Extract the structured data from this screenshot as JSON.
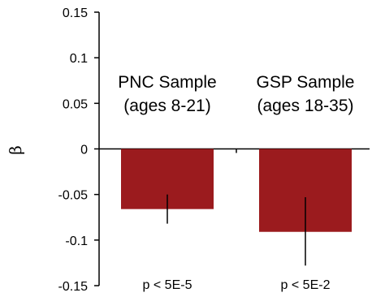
{
  "chart_data": {
    "type": "bar",
    "categories": [
      [
        "PNC Sample",
        "(ages 8-21)"
      ],
      [
        "GSP Sample",
        "(ages 18-35)"
      ]
    ],
    "values": [
      -0.066,
      -0.091
    ],
    "error_low": [
      -0.082,
      -0.128
    ],
    "error_high": [
      -0.05,
      -0.053
    ],
    "annotations": [
      "p < 5E-5",
      "p < 5E-2"
    ],
    "ylabel": "β",
    "xlabel": "",
    "ylim": [
      -0.15,
      0.15
    ],
    "yticks": [
      0.15,
      0.1,
      0.05,
      0,
      -0.05,
      -0.1,
      -0.15
    ],
    "ytick_labels": [
      "0.15",
      "0.1",
      "0.05",
      "0",
      "-0.05",
      "-0.1",
      "-0.15"
    ],
    "bar_color": "#9b1b1e",
    "error_color": "#000000",
    "grid": false
  }
}
